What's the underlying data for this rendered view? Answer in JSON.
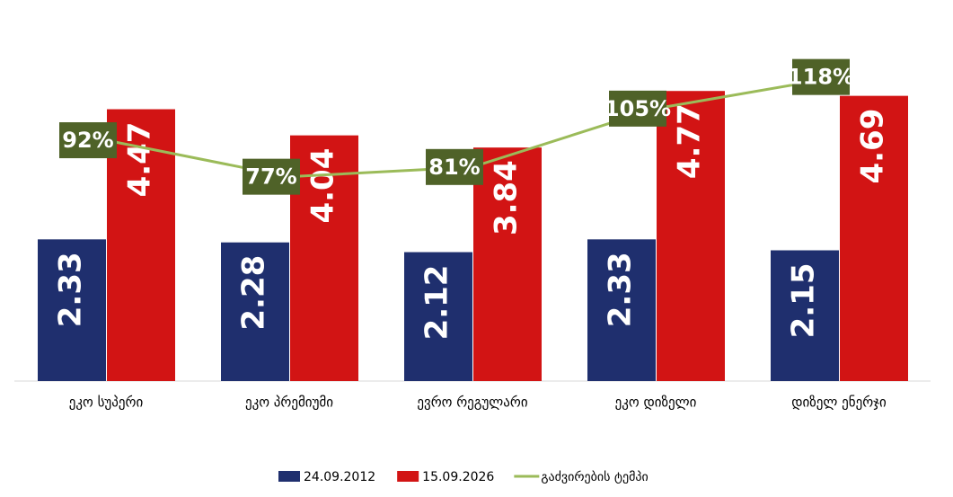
{
  "chart_data": {
    "type": "bar",
    "categories": [
      "ეკო სუპერი",
      "ეკო პრემიუმი",
      "ევრო რეგულარი",
      "ეკო დიზელი",
      "დიზელ ენერჯი"
    ],
    "series": [
      {
        "name": "24.09.2012",
        "color": "#1f2f6e",
        "values": [
          2.33,
          2.28,
          2.12,
          2.33,
          2.15
        ]
      },
      {
        "name": "15.09.2026",
        "color": "#d21414",
        "values": [
          4.47,
          4.04,
          3.84,
          4.77,
          4.69
        ]
      },
      {
        "name": "გაძვირების ტემპი",
        "color": "#9bbb59",
        "type": "line",
        "axis": "y2",
        "label_color": "#4f6228",
        "values": [
          92,
          77,
          81,
          105,
          118
        ],
        "value_labels": [
          "92%",
          "77%",
          "81%",
          "105%",
          "118%"
        ]
      }
    ],
    "ylim": [
      0,
      6
    ],
    "y2lim": [
      -7,
      143
    ],
    "legend": "bottom"
  }
}
